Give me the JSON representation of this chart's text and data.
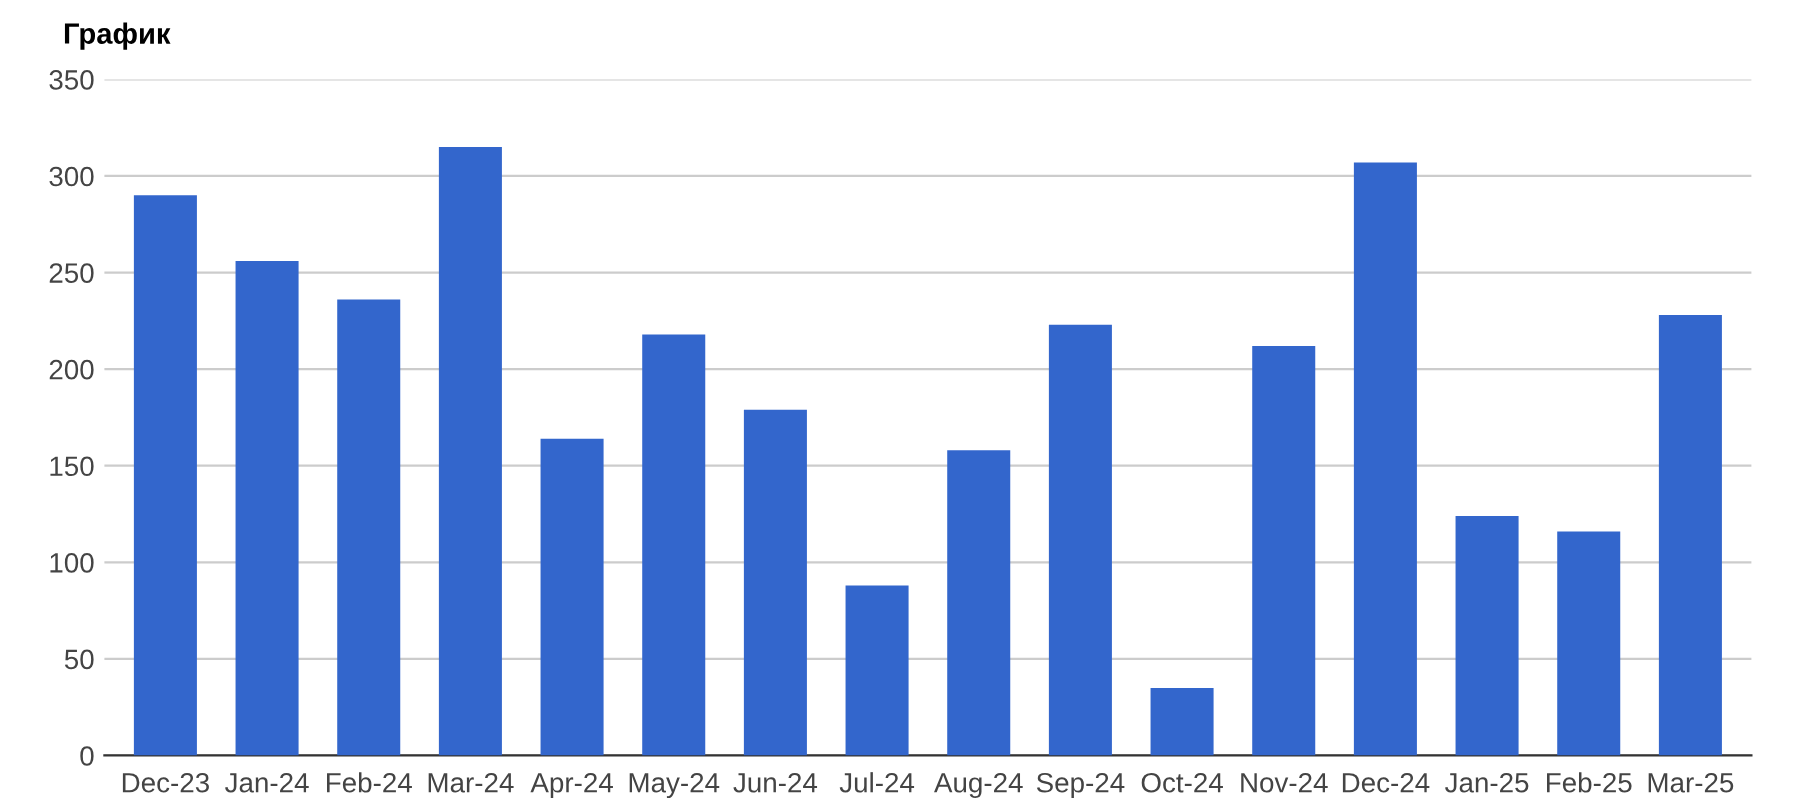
{
  "chart_data": {
    "type": "bar",
    "title": "График",
    "categories": [
      "Dec-23",
      "Jan-24",
      "Feb-24",
      "Mar-24",
      "Apr-24",
      "May-24",
      "Jun-24",
      "Jul-24",
      "Aug-24",
      "Sep-24",
      "Oct-24",
      "Nov-24",
      "Dec-24",
      "Jan-25",
      "Feb-25",
      "Mar-25"
    ],
    "values": [
      290,
      256,
      236,
      315,
      164,
      218,
      179,
      88,
      158,
      223,
      35,
      212,
      307,
      124,
      116,
      228
    ],
    "color": "#3366cc",
    "ylim": [
      0,
      350
    ],
    "yticks": [
      0,
      50,
      100,
      150,
      200,
      250,
      300,
      350
    ],
    "grid": "y",
    "legend": false
  }
}
